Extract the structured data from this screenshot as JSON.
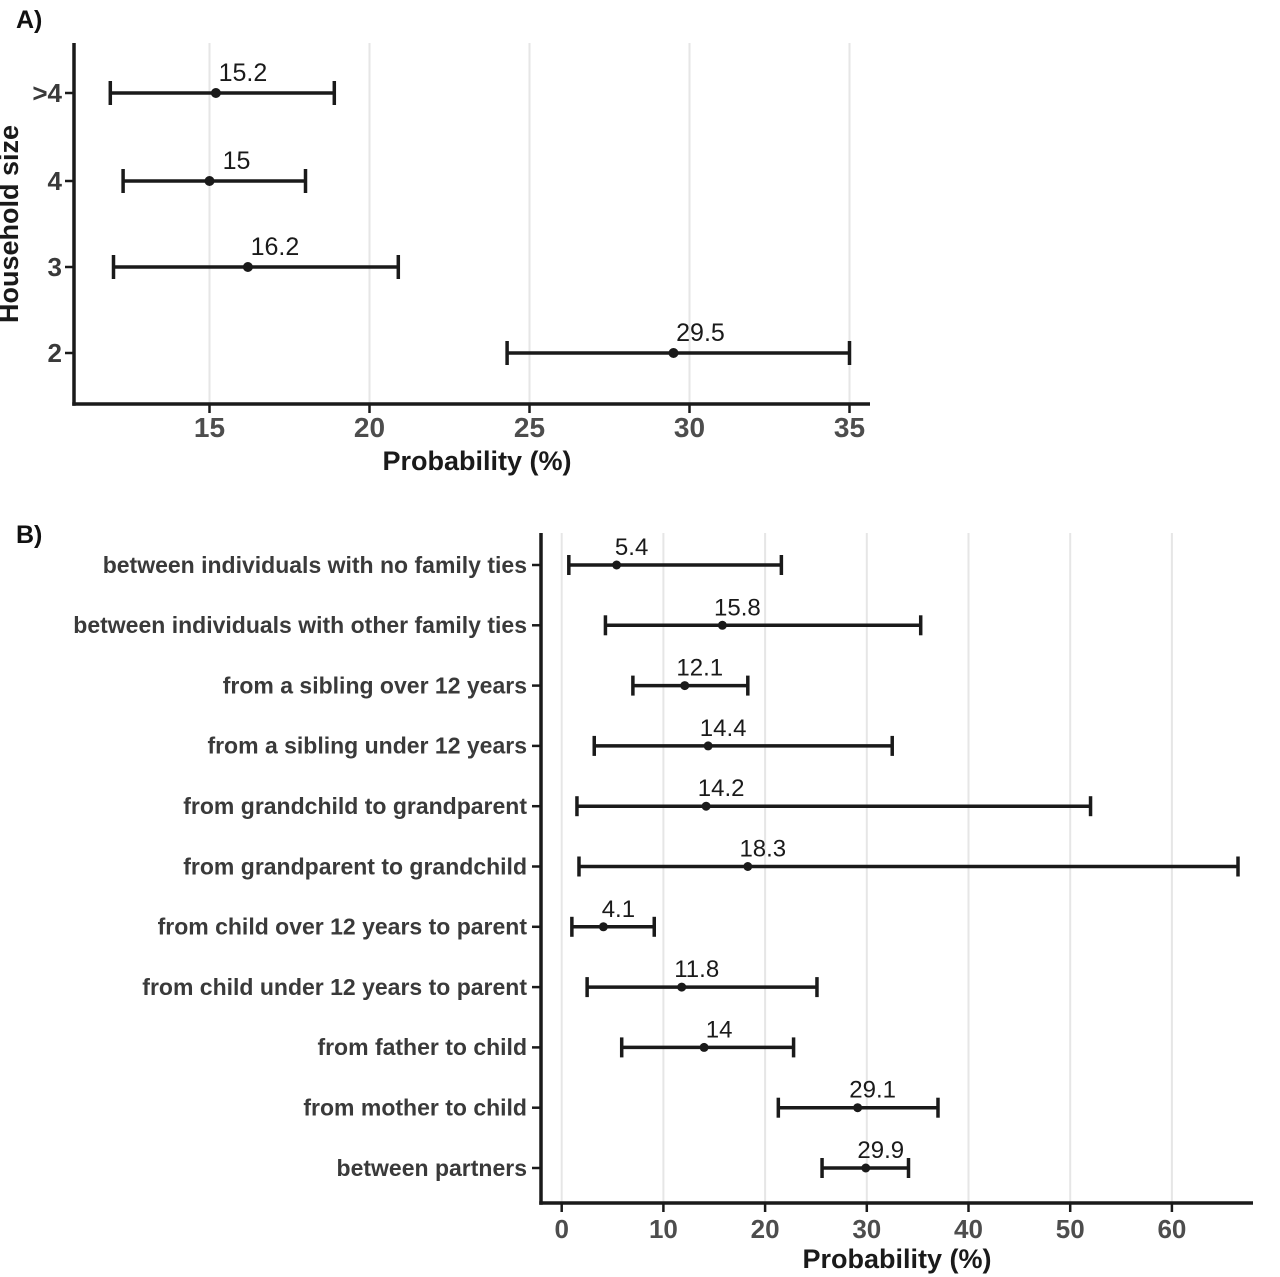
{
  "figure": {
    "panel_a_label": "A)",
    "panel_b_label": "B)",
    "background": "#ffffff"
  },
  "colors": {
    "data": "#1a1a1a",
    "axis": "#1a1a1a",
    "grid": "#e6e6e6",
    "tick_text": "#4d4d4d",
    "category_text": "#3a3a3a",
    "value_text": "#1a1a1a"
  },
  "chart_data": [
    {
      "type": "scatter",
      "subtype": "horizontal-error-bar",
      "panel": "A",
      "title": "",
      "xlabel": "Probability (%)",
      "ylabel": "Household size",
      "categories": [
        ">4",
        "4",
        "3",
        "2"
      ],
      "series": [
        {
          "name": "probability_pct",
          "values": [
            15.2,
            15,
            16.2,
            29.5
          ],
          "ci_low": [
            11.9,
            12.3,
            12.0,
            24.3
          ],
          "ci_high": [
            18.9,
            18.0,
            20.9,
            35.0
          ],
          "labels": [
            "15.2",
            "15",
            "16.2",
            "29.5"
          ]
        }
      ],
      "xticks": [
        15,
        20,
        25,
        30,
        35
      ],
      "xlim": [
        10.8,
        35.6
      ],
      "grid": "vertical-only",
      "legend": "none"
    },
    {
      "type": "scatter",
      "subtype": "horizontal-error-bar",
      "panel": "B",
      "title": "",
      "xlabel": "Probability (%)",
      "ylabel": "",
      "categories": [
        "between individuals with no family ties",
        "between individuals with other family ties",
        "from a sibling over 12 years",
        "from a sibling under 12 years",
        "from grandchild to grandparent",
        "from grandparent to grandchild",
        "from child over 12 years to parent",
        "from child under 12 years to parent",
        "from father to child",
        "from mother to child",
        "between partners"
      ],
      "series": [
        {
          "name": "probability_pct",
          "values": [
            5.4,
            15.8,
            12.1,
            14.4,
            14.2,
            18.3,
            4.1,
            11.8,
            14,
            29.1,
            29.9
          ],
          "ci_low": [
            0.7,
            4.3,
            7.0,
            3.2,
            1.5,
            1.7,
            1.0,
            2.5,
            5.9,
            21.3,
            25.6
          ],
          "ci_high": [
            21.6,
            35.3,
            18.3,
            32.5,
            52.0,
            66.5,
            9.1,
            25.1,
            22.8,
            37.0,
            34.1
          ],
          "labels": [
            "5.4",
            "15.8",
            "12.1",
            "14.4",
            "14.2",
            "18.3",
            "4.1",
            "11.8",
            "14",
            "29.1",
            "29.9"
          ]
        }
      ],
      "xticks": [
        0,
        10,
        20,
        30,
        40,
        50,
        60
      ],
      "xlim": [
        -2,
        68
      ],
      "grid": "vertical-only",
      "legend": "none"
    }
  ]
}
